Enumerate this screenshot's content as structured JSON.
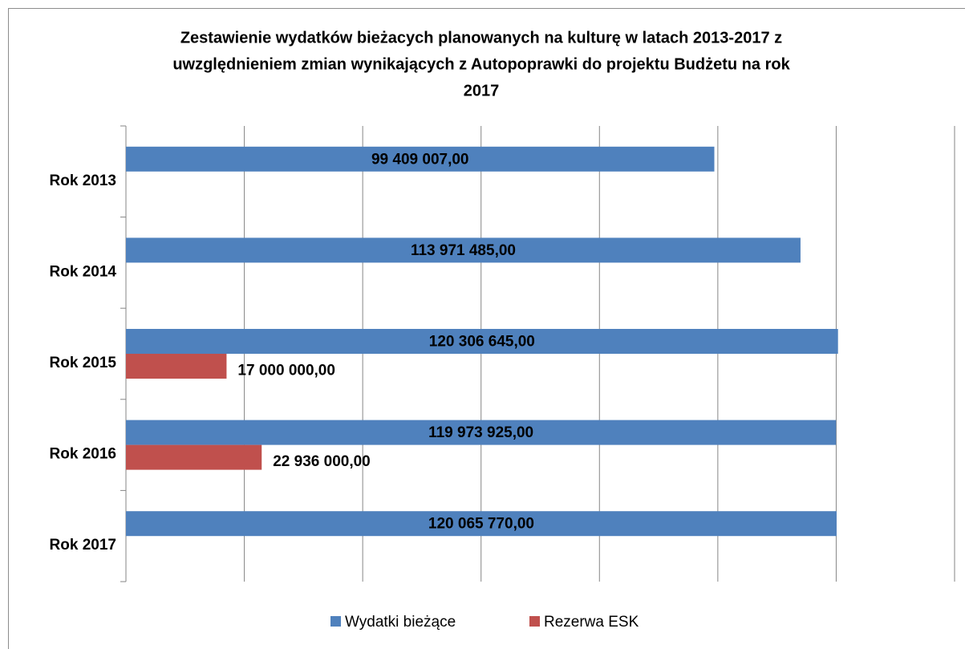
{
  "chart_data": {
    "type": "barh",
    "title": [
      "Zestawienie wydatków bieżacych planowanych na kulturę w latach 2013-2017 z",
      "uwzględnieniem zmian wynikających z Autopoprawki do projektu Budżetu na rok",
      "2017"
    ],
    "categories": [
      "Rok 2013",
      "Rok 2014",
      "Rok 2015",
      "Rok 2016",
      "Rok 2017"
    ],
    "series": [
      {
        "name": "Wydatki bieżące",
        "color": "#4f81bd",
        "values": [
          99409007,
          113971485,
          120306645,
          119973925,
          120065770
        ],
        "value_labels": [
          "99 409 007,00",
          "113 971 485,00",
          "120 306 645,00",
          "119 973 925,00",
          "120 065 770,00"
        ]
      },
      {
        "name": "Rezerwa ESK",
        "color": "#c0504d",
        "values": [
          null,
          null,
          17000000,
          22936000,
          null
        ],
        "value_labels": [
          null,
          null,
          "17 000 000,00",
          "22 936 000,00",
          null
        ]
      }
    ],
    "xlim": [
      0,
      140000000
    ],
    "xticks": [
      0,
      20000000,
      40000000,
      60000000,
      80000000,
      100000000,
      120000000,
      140000000
    ],
    "grid": true,
    "legend": "bottom"
  }
}
